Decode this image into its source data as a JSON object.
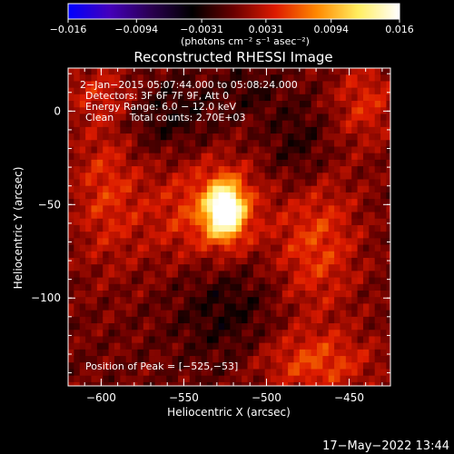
{
  "chart_data": {
    "type": "heatmap",
    "title": "Reconstructed RHESSI Image",
    "xlabel": "Heliocentric X (arcsec)",
    "ylabel": "Heliocentric Y (arcsec)",
    "xlim": [
      -620,
      -425
    ],
    "ylim": [
      -147,
      23
    ],
    "x_ticks": [
      {
        "value": -600,
        "label": "−600"
      },
      {
        "value": -550,
        "label": "−550"
      },
      {
        "value": -500,
        "label": "−500"
      },
      {
        "value": -450,
        "label": "−450"
      }
    ],
    "y_ticks": [
      {
        "value": 0,
        "label": "0"
      },
      {
        "value": -50,
        "label": "−50"
      },
      {
        "value": -100,
        "label": "−100"
      }
    ],
    "colorbar": {
      "range": [
        -0.016,
        0.016
      ],
      "ticks": [
        {
          "value": -0.016,
          "label": "−0.016"
        },
        {
          "value": -0.0094,
          "label": "−0.0094"
        },
        {
          "value": -0.0031,
          "label": "−0.0031"
        },
        {
          "value": 0.0031,
          "label": "0.0031"
        },
        {
          "value": 0.0094,
          "label": "0.0094"
        },
        {
          "value": 0.016,
          "label": "0.016"
        }
      ],
      "unit_label": "(photons cm⁻² s⁻¹ asec⁻²)",
      "colors": [
        "#0000ff",
        "#4400bb",
        "#2a0050",
        "#000000",
        "#6a0000",
        "#dd1a00",
        "#ff8800",
        "#ffee60",
        "#ffffff"
      ]
    },
    "annotations": [
      "2−Jan−2015 05:07:44.000 to 05:08:24.000",
      "Detectors: 3F 6F 7F 9F, Att 0",
      "Energy Range: 6.0 − 12.0 keV",
      "Clean     Total counts: 2.70E+03"
    ],
    "peak_label": "Position of Peak = [−525,−53]",
    "peak": {
      "x": -525,
      "y": -53,
      "value": 0.016
    },
    "background_features": [
      {
        "sign": "positive",
        "x": -598,
        "y": -40,
        "sx": 14,
        "sy": 30,
        "amp": 0.004
      },
      {
        "sign": "positive",
        "x": -555,
        "y": -55,
        "sx": 22,
        "sy": 22,
        "amp": 0.003
      },
      {
        "sign": "positive",
        "x": -470,
        "y": -70,
        "sx": 18,
        "sy": 28,
        "amp": 0.005
      },
      {
        "sign": "positive",
        "x": -440,
        "y": 5,
        "sx": 14,
        "sy": 16,
        "amp": 0.004
      },
      {
        "sign": "positive",
        "x": -470,
        "y": -135,
        "sx": 25,
        "sy": 12,
        "amp": 0.005
      },
      {
        "sign": "positive",
        "x": -600,
        "y": 10,
        "sx": 18,
        "sy": 10,
        "amp": 0.003
      },
      {
        "sign": "negative",
        "x": -560,
        "y": -2,
        "sx": 22,
        "sy": 15,
        "amp": -0.003
      },
      {
        "sign": "negative",
        "x": -480,
        "y": -20,
        "sx": 14,
        "sy": 18,
        "amp": -0.003
      },
      {
        "sign": "negative",
        "x": -525,
        "y": -105,
        "sx": 22,
        "sy": 22,
        "amp": -0.003
      },
      {
        "sign": "negative",
        "x": -510,
        "y": 12,
        "sx": 12,
        "sy": 10,
        "amp": -0.002
      }
    ]
  },
  "footer": {
    "timestamp": "17−May−2022 13:44"
  }
}
